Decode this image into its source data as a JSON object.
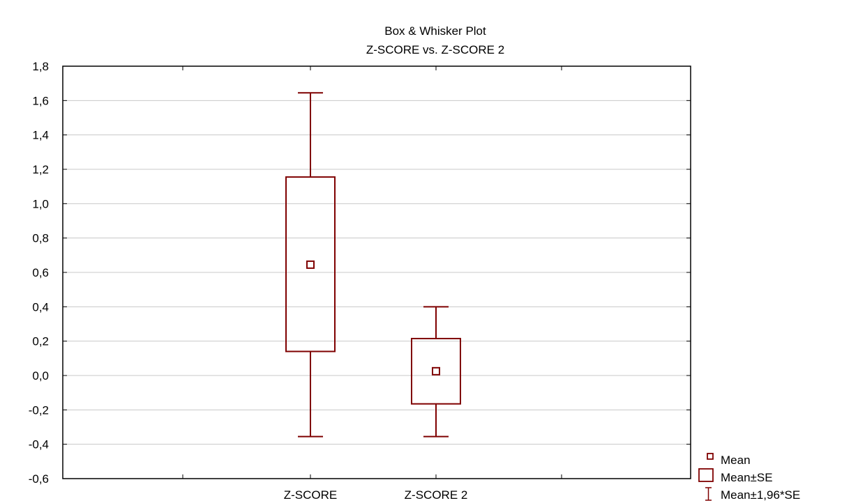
{
  "chart_data": {
    "type": "box",
    "title": "Box & Whisker Plot",
    "subtitle": "Z-SCORE vs. Z-SCORE 2",
    "xlabel": "",
    "ylabel": "",
    "ylim": [
      -0.6,
      1.8
    ],
    "yticks": [
      "1,8",
      "1,6",
      "1,4",
      "1,2",
      "1,0",
      "0,8",
      "0,6",
      "0,4",
      "0,2",
      "0,0",
      "-0,2",
      "-0,4",
      "-0,6"
    ],
    "ytick_values": [
      1.8,
      1.6,
      1.4,
      1.2,
      1.0,
      0.8,
      0.6,
      0.4,
      0.2,
      0.0,
      -0.2,
      -0.4,
      -0.6
    ],
    "grid": true,
    "legend_position": "bottom-right",
    "categories": [
      "Z-SCORE",
      "Z-SCORE 2"
    ],
    "series": [
      {
        "category": "Z-SCORE",
        "mean": 0.645,
        "se_low": 0.14,
        "se_high": 1.155,
        "ci_low": -0.355,
        "ci_high": 1.645
      },
      {
        "category": "Z-SCORE 2",
        "mean": 0.025,
        "se_low": -0.165,
        "se_high": 0.215,
        "ci_low": -0.355,
        "ci_high": 0.4
      }
    ],
    "legend": [
      {
        "symbol": "mean",
        "label": "Mean"
      },
      {
        "symbol": "box",
        "label": "Mean±SE"
      },
      {
        "symbol": "whisker",
        "label": "Mean±1,96*SE"
      }
    ],
    "colors": {
      "series": "#7f0000",
      "grid": "#c8c8c8",
      "frame": "#000000"
    }
  }
}
